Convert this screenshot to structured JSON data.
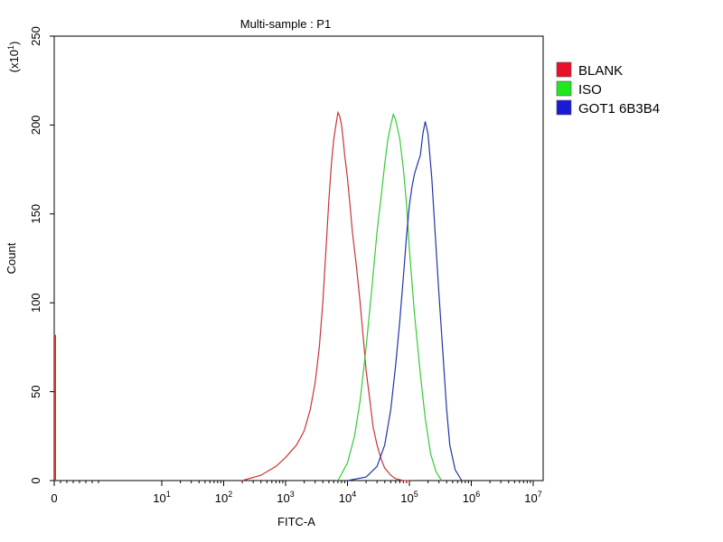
{
  "chart_data": {
    "type": "line",
    "title": "Multi-sample : P1",
    "xlabel": "FITC-A",
    "ylabel": "Count",
    "y_multiplier_label": "(x10",
    "y_multiplier_exp": "1",
    "y_multiplier_close": ")",
    "x_scale": "log",
    "xlim": [
      0,
      10000000
    ],
    "ylim": [
      0,
      250
    ],
    "y_ticks": [
      0,
      50,
      100,
      150,
      200,
      250
    ],
    "x_ticks": [
      {
        "value": 0,
        "base": "0",
        "exp": ""
      },
      {
        "value": 10,
        "base": "10",
        "exp": "1"
      },
      {
        "value": 100,
        "base": "10",
        "exp": "2"
      },
      {
        "value": 1000,
        "base": "10",
        "exp": "3"
      },
      {
        "value": 10000,
        "base": "10",
        "exp": "4"
      },
      {
        "value": 100000,
        "base": "10",
        "exp": "5"
      },
      {
        "value": 1000000,
        "base": "10",
        "exp": "6"
      },
      {
        "value": 10000000,
        "base": "10",
        "exp": "7"
      }
    ],
    "legend_position": "right",
    "grid": false,
    "series": [
      {
        "name": "BLANK",
        "color": "#cc3333",
        "legend_color": "#e8102a",
        "x": [
          200,
          400,
          700,
          1000,
          1500,
          2000,
          2500,
          3000,
          3500,
          4000,
          4500,
          5000,
          5500,
          6000,
          6500,
          7000,
          7500,
          8000,
          8500,
          9000,
          10000,
          11000,
          12000,
          14000,
          16000,
          18000,
          20000,
          23000,
          26000,
          30000,
          35000,
          40000,
          50000,
          60000,
          80000,
          100000
        ],
        "y": [
          0,
          3,
          8,
          13,
          20,
          28,
          40,
          55,
          75,
          100,
          130,
          158,
          178,
          192,
          200,
          207,
          205,
          200,
          192,
          183,
          170,
          155,
          140,
          120,
          100,
          80,
          62,
          45,
          30,
          20,
          12,
          7,
          3,
          1,
          0,
          0
        ]
      },
      {
        "name": "ISO",
        "color": "#33cc33",
        "legend_color": "#1ee81e",
        "x": [
          7000,
          10000,
          13000,
          16000,
          20000,
          25000,
          30000,
          35000,
          40000,
          45000,
          50000,
          55000,
          60000,
          70000,
          80000,
          90000,
          100000,
          120000,
          150000,
          180000,
          220000,
          270000,
          330000
        ],
        "y": [
          0,
          10,
          25,
          45,
          75,
          110,
          140,
          160,
          178,
          192,
          200,
          206,
          203,
          192,
          175,
          155,
          130,
          95,
          60,
          35,
          15,
          5,
          0
        ]
      },
      {
        "name": "GOT1 6B3B4",
        "color": "#2233aa",
        "legend_color": "#1a1ad6",
        "x": [
          10000,
          20000,
          30000,
          40000,
          50000,
          60000,
          70000,
          80000,
          90000,
          100000,
          110000,
          120000,
          135000,
          150000,
          165000,
          180000,
          200000,
          230000,
          260000,
          300000,
          350000,
          400000,
          450000,
          550000,
          700000
        ],
        "y": [
          0,
          2,
          8,
          20,
          40,
          65,
          90,
          115,
          138,
          155,
          165,
          172,
          178,
          183,
          195,
          202,
          195,
          170,
          140,
          105,
          70,
          40,
          20,
          6,
          0
        ]
      }
    ],
    "baseline_spike": {
      "x": 0,
      "y": 82,
      "color": "#cc3333"
    }
  }
}
